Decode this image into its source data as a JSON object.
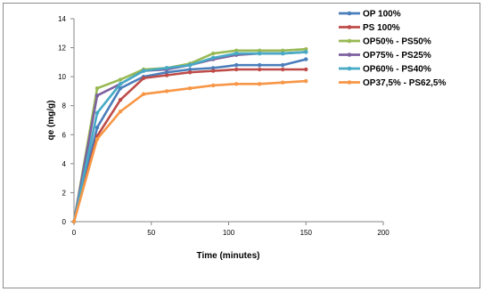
{
  "chart_data": {
    "type": "line",
    "xlabel": "Time (minutes)",
    "ylabel": "qe (mg/g)",
    "xlim": [
      0,
      200
    ],
    "ylim": [
      0,
      14
    ],
    "xticks": [
      0,
      50,
      100,
      150,
      200
    ],
    "yticks": [
      0,
      2,
      4,
      6,
      8,
      10,
      12,
      14
    ],
    "grid": false,
    "legend_position": "top-right",
    "series": [
      {
        "name": "OP 100%",
        "color": "#4a7ebb",
        "x": [
          0,
          15,
          30,
          45,
          60,
          75,
          90,
          105,
          120,
          135,
          150
        ],
        "y": [
          0,
          6.5,
          9.2,
          10.0,
          10.3,
          10.5,
          10.6,
          10.8,
          10.8,
          10.8,
          11.2
        ]
      },
      {
        "name": "PS 100%",
        "color": "#be4b48",
        "x": [
          0,
          15,
          30,
          45,
          60,
          75,
          90,
          105,
          120,
          135,
          150
        ],
        "y": [
          0,
          5.9,
          8.4,
          9.9,
          10.1,
          10.3,
          10.4,
          10.5,
          10.5,
          10.5,
          10.5
        ]
      },
      {
        "name": "OP50% - PS50%",
        "color": "#98b954",
        "x": [
          0,
          15,
          30,
          45,
          60,
          75,
          90,
          105,
          120,
          135,
          150
        ],
        "y": [
          0,
          9.2,
          9.8,
          10.5,
          10.6,
          10.9,
          11.6,
          11.8,
          11.8,
          11.8,
          11.9
        ]
      },
      {
        "name": "OP75% - PS25%",
        "color": "#7d60a0",
        "x": [
          0,
          15,
          30,
          45,
          60,
          75,
          90,
          105,
          120,
          135,
          150
        ],
        "y": [
          0,
          8.7,
          9.5,
          10.4,
          10.5,
          10.8,
          11.2,
          11.5,
          11.6,
          11.6,
          11.7
        ]
      },
      {
        "name": "OP60% - PS40%",
        "color": "#46aac5",
        "x": [
          0,
          15,
          30,
          45,
          60,
          75,
          90,
          105,
          120,
          135,
          150
        ],
        "y": [
          0,
          7.5,
          9.5,
          10.4,
          10.6,
          10.8,
          11.3,
          11.6,
          11.6,
          11.6,
          11.7
        ]
      },
      {
        "name": "OP37,5% - PS62,5%",
        "color": "#f79646",
        "x": [
          0,
          15,
          30,
          45,
          60,
          75,
          90,
          105,
          120,
          135,
          150
        ],
        "y": [
          0,
          5.7,
          7.6,
          8.8,
          9.0,
          9.2,
          9.4,
          9.5,
          9.5,
          9.6,
          9.7
        ]
      }
    ]
  }
}
